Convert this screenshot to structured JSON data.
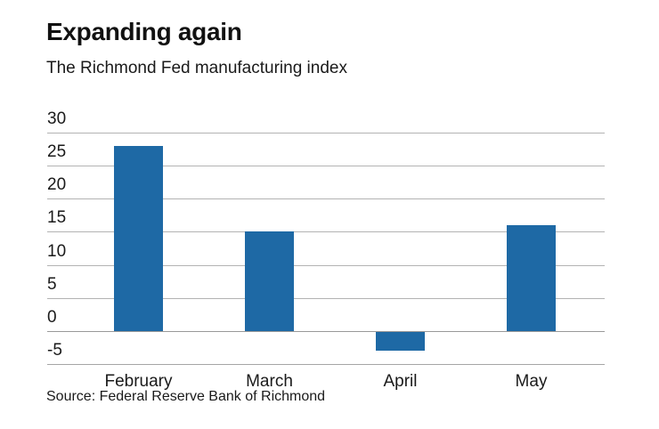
{
  "header": {
    "title": "Expanding again",
    "subtitle": "The Richmond Fed manufacturing index"
  },
  "footer": {
    "source": "Source: Federal Reserve Bank of Richmond"
  },
  "colors": {
    "bar": "#1e69a5",
    "gridline": "#b3b3b3",
    "zero_line": "#999999",
    "text": "#1a1a1a"
  },
  "chart_data": {
    "type": "bar",
    "title": "Expanding again",
    "subtitle": "The Richmond Fed manufacturing index",
    "source": "Source: Federal Reserve Bank of Richmond",
    "categories": [
      "February",
      "March",
      "April",
      "May"
    ],
    "values": [
      28,
      15,
      -3,
      16
    ],
    "xlabel": "",
    "ylabel": "",
    "ylim": [
      -5,
      30
    ],
    "yticks": [
      30,
      25,
      20,
      15,
      10,
      5,
      0,
      -5
    ],
    "grid": true,
    "legend": false,
    "bar_color": "#1e69a5"
  }
}
